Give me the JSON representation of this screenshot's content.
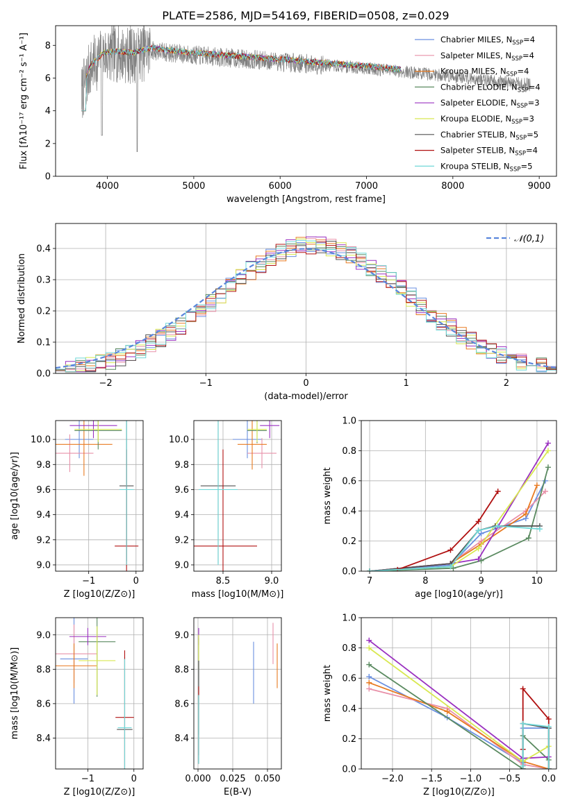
{
  "title": "PLATE=2586, MJD=54169, FIBERID=0508, z=0.029",
  "models": [
    {
      "name": "Chabrier MILES",
      "nssp": "4",
      "color": "#6a8fe0"
    },
    {
      "name": "Salpeter MILES",
      "nssp": "4",
      "color": "#e890a8"
    },
    {
      "name": "Kroupa MILES",
      "nssp": "4",
      "color": "#e87a20"
    },
    {
      "name": "Chabrier ELODIE",
      "nssp": "4",
      "color": "#5a8a60"
    },
    {
      "name": "Salpeter ELODIE",
      "nssp": "3",
      "color": "#9a30c0"
    },
    {
      "name": "Kroupa ELODIE",
      "nssp": "3",
      "color": "#d8e850"
    },
    {
      "name": "Chabrier STELIB",
      "nssp": "5",
      "color": "#505050"
    },
    {
      "name": "Salpeter STELIB",
      "nssp": "4",
      "color": "#b01010"
    },
    {
      "name": "Kroupa STELIB",
      "nssp": "5",
      "color": "#70d8d8"
    }
  ],
  "legend_prefix": "N",
  "legend_sub": "SSP",
  "chart_data": [
    {
      "type": "line",
      "id": "spectrum",
      "xlabel": "wavelength [Angstrom, rest frame]",
      "ylabel": "Flux [fλ10⁻¹⁷ erg cm⁻² s⁻¹ A⁻¹]",
      "xlim": [
        3400,
        9200
      ],
      "ylim": [
        0,
        9.2
      ],
      "xticks": [
        4000,
        5000,
        6000,
        7000,
        8000,
        9000
      ],
      "yticks": [
        0,
        2,
        4,
        6,
        8
      ],
      "legend": "top-right",
      "data_color": "#808080",
      "data_range": [
        3700,
        8900
      ],
      "model_range": [
        3700,
        7400
      ],
      "continuum": [
        [
          3700,
          5.0
        ],
        [
          3800,
          6.6
        ],
        [
          3950,
          7.4
        ],
        [
          4100,
          7.5
        ],
        [
          4300,
          7.4
        ],
        [
          4500,
          7.7
        ],
        [
          4800,
          7.5
        ],
        [
          5000,
          7.4
        ],
        [
          5500,
          7.2
        ],
        [
          6000,
          7.0
        ],
        [
          6500,
          6.8
        ],
        [
          7000,
          6.6
        ],
        [
          7400,
          6.4
        ],
        [
          8000,
          6.1
        ],
        [
          8500,
          5.8
        ],
        [
          8900,
          5.6
        ]
      ]
    },
    {
      "type": "bar",
      "id": "residuals",
      "xlabel": "(data-model)/error",
      "ylabel": "Normed distribution",
      "xlim": [
        -2.5,
        2.5
      ],
      "ylim": [
        0,
        0.48
      ],
      "xticks": [
        -2,
        -1,
        0,
        1,
        2
      ],
      "yticks": [
        0.0,
        0.1,
        0.2,
        0.3,
        0.4
      ],
      "grid": true,
      "legend": "top-right",
      "curve_label": "𝒩(0,1)",
      "curve_color": "#5a86dc",
      "bin_width": 0.1
    },
    {
      "type": "scatter",
      "id": "age-vs-Z",
      "xlabel": "Z [log10(Z/Z⊙)]",
      "ylabel": "age [log10(age/yr)]",
      "xlim": [
        -1.7,
        0.15
      ],
      "ylim": [
        8.95,
        10.15
      ],
      "xticks": [
        -1,
        0
      ],
      "yticks": [
        9.0,
        9.2,
        9.4,
        9.6,
        9.8,
        10.0
      ],
      "grid": true,
      "points": [
        {
          "m": 0,
          "x": -1.2,
          "y": 10.0,
          "xe": 0.3,
          "ye": 0.15
        },
        {
          "m": 1,
          "x": -1.4,
          "y": 9.89,
          "xe": 0.5,
          "ye": 0.15
        },
        {
          "m": 2,
          "x": -1.1,
          "y": 9.96,
          "xe": 0.6,
          "ye": 0.25
        },
        {
          "m": 3,
          "x": -0.8,
          "y": 10.07,
          "xe": 0.5,
          "ye": 0.15
        },
        {
          "m": 4,
          "x": -0.9,
          "y": 10.11,
          "xe": 0.5,
          "ye": 0.1
        },
        {
          "m": 5,
          "x": -0.8,
          "y": 10.08,
          "xe": 0.5,
          "ye": 0.1
        },
        {
          "m": 6,
          "x": -0.2,
          "y": 9.63,
          "xe": 0.15,
          "ye": 0.6
        },
        {
          "m": 7,
          "x": -0.2,
          "y": 9.15,
          "xe": 0.25,
          "ye": 0.77
        },
        {
          "m": 8,
          "x": -0.2,
          "y": 9.6,
          "xe": 0.15,
          "ye": 0.6
        }
      ]
    },
    {
      "type": "scatter",
      "id": "age-vs-mass",
      "xlabel": "mass [log10(M/M⊙)]",
      "ylabel": "",
      "xlim": [
        8.2,
        9.1
      ],
      "ylim": [
        8.95,
        10.15
      ],
      "xticks": [
        8.5,
        9.0
      ],
      "yticks": [
        9.0,
        9.2,
        9.4,
        9.6,
        9.8,
        10.0
      ],
      "grid": true,
      "points": [
        {
          "m": 0,
          "x": 8.75,
          "y": 10.0,
          "xe": 0.15,
          "ye": 0.15
        },
        {
          "m": 1,
          "x": 8.9,
          "y": 9.89,
          "xe": 0.15,
          "ye": 0.12
        },
        {
          "m": 2,
          "x": 8.8,
          "y": 9.96,
          "xe": 0.15,
          "ye": 0.2
        },
        {
          "m": 3,
          "x": 8.85,
          "y": 10.07,
          "xe": 0.1,
          "ye": 0.1
        },
        {
          "m": 4,
          "x": 8.98,
          "y": 10.11,
          "xe": 0.1,
          "ye": 0.1
        },
        {
          "m": 5,
          "x": 8.85,
          "y": 10.08,
          "xe": 0.1,
          "ye": 0.1
        },
        {
          "m": 6,
          "x": 8.45,
          "y": 9.63,
          "xe": 0.18,
          "ye": 0.62
        },
        {
          "m": 7,
          "x": 8.5,
          "y": 9.15,
          "xe": 0.35,
          "ye": 0.77
        },
        {
          "m": 8,
          "x": 8.45,
          "y": 9.6,
          "xe": 0.2,
          "ye": 0.6
        }
      ]
    },
    {
      "type": "line",
      "id": "massweight-vs-age",
      "xlabel": "age [log10(age/yr)]",
      "ylabel": "mass weight",
      "xlim": [
        6.85,
        10.35
      ],
      "ylim": [
        0,
        1.0
      ],
      "xticks": [
        7,
        8,
        9,
        10
      ],
      "yticks": [
        0.0,
        0.2,
        0.4,
        0.6,
        0.8,
        1.0
      ],
      "grid": true,
      "series": [
        {
          "m": 0,
          "x": [
            7.0,
            8.45,
            9.0,
            9.8,
            10.15
          ],
          "y": [
            0.0,
            0.04,
            0.25,
            0.35,
            0.6
          ]
        },
        {
          "m": 1,
          "x": [
            7.0,
            8.45,
            9.0,
            9.8,
            10.15
          ],
          "y": [
            0.0,
            0.05,
            0.2,
            0.4,
            0.53
          ]
        },
        {
          "m": 2,
          "x": [
            7.0,
            8.45,
            9.0,
            9.8,
            10.0
          ],
          "y": [
            0.0,
            0.05,
            0.18,
            0.38,
            0.57
          ]
        },
        {
          "m": 3,
          "x": [
            7.0,
            8.5,
            9.0,
            9.85,
            10.2
          ],
          "y": [
            0.0,
            0.02,
            0.07,
            0.22,
            0.69
          ]
        },
        {
          "m": 4,
          "x": [
            7.0,
            8.45,
            8.95,
            10.2
          ],
          "y": [
            0.0,
            0.05,
            0.08,
            0.85
          ]
        },
        {
          "m": 5,
          "x": [
            7.0,
            8.45,
            8.95,
            10.2
          ],
          "y": [
            0.0,
            0.03,
            0.15,
            0.8
          ]
        },
        {
          "m": 6,
          "x": [
            7.0,
            8.45,
            8.95,
            9.25,
            10.05
          ],
          "y": [
            0.0,
            0.05,
            0.27,
            0.3,
            0.3
          ]
        },
        {
          "m": 7,
          "x": [
            7.5,
            8.45,
            8.95,
            9.3
          ],
          "y": [
            0.01,
            0.14,
            0.33,
            0.53
          ]
        },
        {
          "m": 8,
          "x": [
            7.0,
            8.45,
            8.95,
            9.3,
            10.05
          ],
          "y": [
            0.0,
            0.03,
            0.27,
            0.3,
            0.28
          ]
        }
      ]
    },
    {
      "type": "scatter",
      "id": "mass-vs-Z",
      "xlabel": "Z [log10(Z/Z⊙)]",
      "ylabel": "mass [log10(M/M⊙)]",
      "xlim": [
        -1.7,
        0.2
      ],
      "ylim": [
        8.22,
        9.1
      ],
      "xticks": [
        -1,
        0
      ],
      "yticks": [
        8.4,
        8.6,
        8.8,
        9.0
      ],
      "grid": true,
      "points": [
        {
          "m": 0,
          "x": -1.3,
          "y": 8.86,
          "xe": 0.3,
          "ye": 0.26
        },
        {
          "m": 1,
          "x": -1.3,
          "y": 8.89,
          "xe": 0.5,
          "ye": 0.17
        },
        {
          "m": 2,
          "x": -1.3,
          "y": 8.82,
          "xe": 0.5,
          "ye": 0.13
        },
        {
          "m": 3,
          "x": -0.8,
          "y": 8.96,
          "xe": 0.4,
          "ye": 0.32
        },
        {
          "m": 4,
          "x": -1.0,
          "y": 8.99,
          "xe": 0.4,
          "ye": 0.05
        },
        {
          "m": 5,
          "x": -0.8,
          "y": 8.85,
          "xe": 0.4,
          "ye": 0.2
        },
        {
          "m": 6,
          "x": -0.2,
          "y": 8.45,
          "xe": 0.17,
          "ye": 0.42
        },
        {
          "m": 7,
          "x": -0.2,
          "y": 8.52,
          "xe": 0.2,
          "ye": 0.39
        },
        {
          "m": 8,
          "x": -0.2,
          "y": 8.46,
          "xe": 0.15,
          "ye": 0.4
        }
      ]
    },
    {
      "type": "scatter",
      "id": "mass-vs-EBV",
      "xlabel": "E(B-V)",
      "ylabel": "",
      "xlim": [
        -0.003,
        0.06
      ],
      "ylim": [
        8.22,
        9.1
      ],
      "xticks": [
        0.0,
        0.025,
        0.05
      ],
      "ytick_labels_fmt": "0.1",
      "yticks": [
        8.4,
        8.6,
        8.8,
        9.0
      ],
      "grid": true,
      "points": [
        {
          "m": 0,
          "x": 0.04,
          "y": 8.78,
          "ye": 0.18
        },
        {
          "m": 1,
          "x": 0.054,
          "y": 8.95,
          "ye": 0.12
        },
        {
          "m": 2,
          "x": 0.057,
          "y": 8.82,
          "ye": 0.13
        },
        {
          "m": 3,
          "x": 0.0005,
          "y": 8.7,
          "ye": 0.28
        },
        {
          "m": 4,
          "x": 0.0005,
          "y": 8.99,
          "ye": 0.05
        },
        {
          "m": 5,
          "x": 0.0005,
          "y": 8.9,
          "ye": 0.1
        },
        {
          "m": 6,
          "x": 0.0005,
          "y": 8.55,
          "ye": 0.3
        },
        {
          "m": 7,
          "x": 0.0005,
          "y": 8.5,
          "ye": 0.2
        },
        {
          "m": 8,
          "x": 0.0005,
          "y": 8.45,
          "ye": 0.2
        }
      ]
    },
    {
      "type": "line",
      "id": "massweight-vs-Z",
      "xlabel": "Z [log10(Z/Z⊙)]",
      "ylabel": "mass weight",
      "xlim": [
        -2.4,
        0.1
      ],
      "ylim": [
        0,
        1.0
      ],
      "xticks": [
        -2.0,
        -1.5,
        -1.0,
        -0.5,
        0.0
      ],
      "yticks": [
        0.0,
        0.2,
        0.4,
        0.6,
        0.8,
        1.0
      ],
      "grid": true,
      "series": [
        {
          "m": 0,
          "x": [
            -2.3,
            -1.3,
            -0.33,
            -0.33,
            0.0,
            0.0
          ],
          "y": [
            0.61,
            0.34,
            0.04,
            0.27,
            0.27,
            0.0
          ]
        },
        {
          "m": 1,
          "x": [
            -2.3,
            -1.3,
            -0.33,
            0.0
          ],
          "y": [
            0.53,
            0.4,
            0.03,
            0.0
          ]
        },
        {
          "m": 2,
          "x": [
            -2.3,
            -1.3,
            -0.33,
            0.0
          ],
          "y": [
            0.57,
            0.38,
            0.05,
            0.0
          ]
        },
        {
          "m": 3,
          "x": [
            -2.3,
            -0.33,
            -0.33,
            0.0,
            0.0
          ],
          "y": [
            0.69,
            0.0,
            0.22,
            0.06,
            0.0
          ]
        },
        {
          "m": 4,
          "x": [
            -2.3,
            -0.33,
            0.0
          ],
          "y": [
            0.85,
            0.07,
            0.08
          ]
        },
        {
          "m": 5,
          "x": [
            -2.3,
            -0.33,
            0.0
          ],
          "y": [
            0.8,
            0.05,
            0.15
          ]
        },
        {
          "m": 6,
          "x": [
            -0.33,
            -0.33,
            0.0,
            0.0
          ],
          "y": [
            0.0,
            0.3,
            0.27,
            0.0
          ]
        },
        {
          "m": 7,
          "x": [
            -0.33,
            -0.33,
            0.0,
            0.0
          ],
          "y": [
            0.13,
            0.53,
            0.33,
            0.0
          ]
        },
        {
          "m": 8,
          "x": [
            -0.33,
            -0.33,
            0.0,
            0.0
          ],
          "y": [
            0.02,
            0.3,
            0.28,
            0.0
          ]
        }
      ]
    }
  ]
}
